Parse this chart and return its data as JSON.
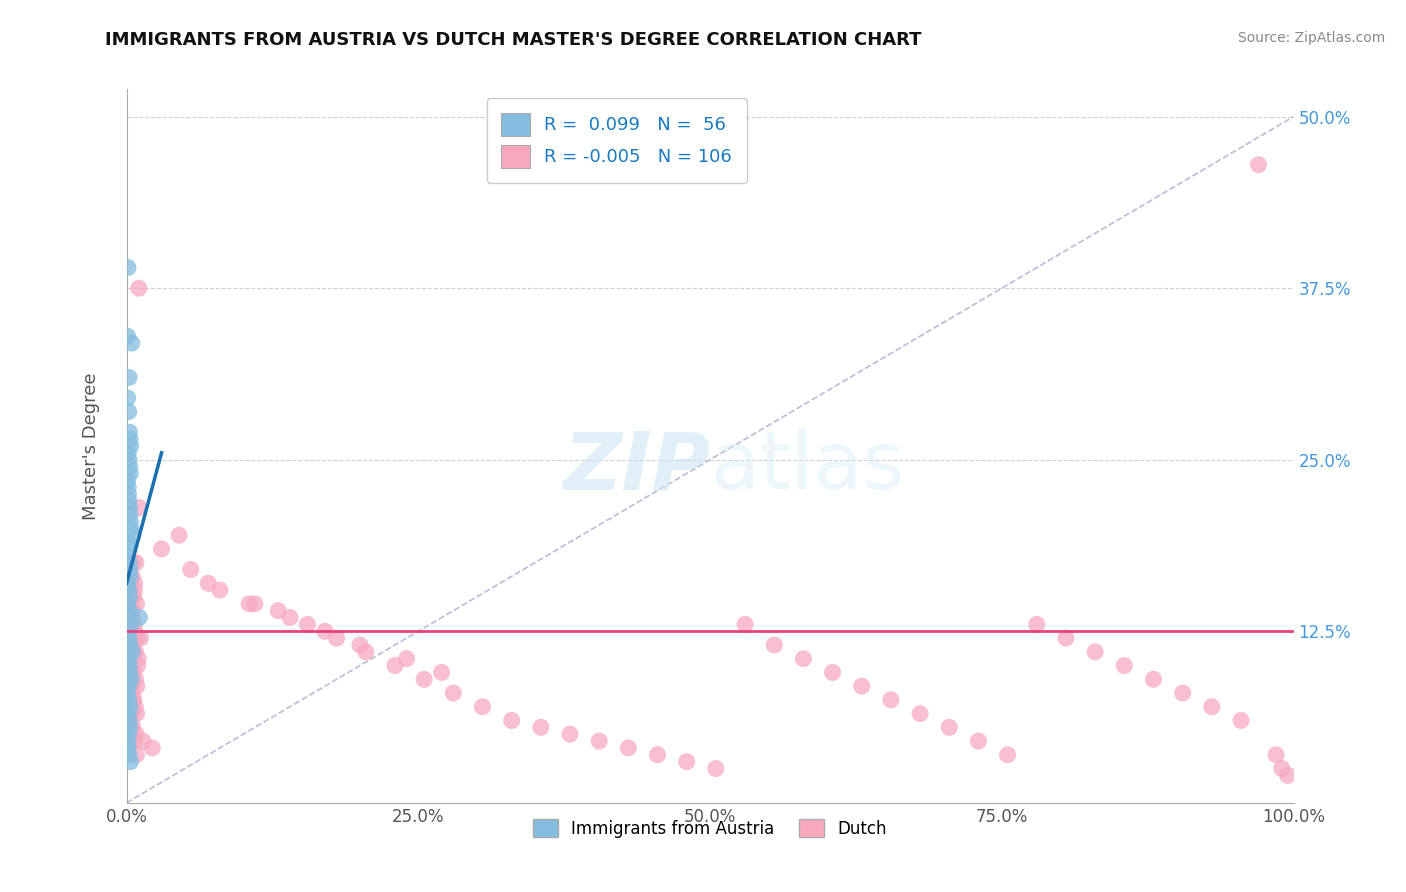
{
  "title": "IMMIGRANTS FROM AUSTRIA VS DUTCH MASTER'S DEGREE CORRELATION CHART",
  "source_text": "Source: ZipAtlas.com",
  "ylabel": "Master's Degree",
  "xlim": [
    0.0,
    100.0
  ],
  "ylim": [
    0.0,
    52.0
  ],
  "xticks": [
    0.0,
    25.0,
    50.0,
    75.0,
    100.0
  ],
  "xtick_labels": [
    "0.0%",
    "25.0%",
    "50.0%",
    "75.0%",
    "100.0%"
  ],
  "yticks": [
    12.5,
    25.0,
    37.5,
    50.0
  ],
  "ytick_labels": [
    "12.5%",
    "25.0%",
    "37.5%",
    "50.0%"
  ],
  "blue_r": 0.099,
  "blue_n": 56,
  "pink_r": -0.005,
  "pink_n": 106,
  "blue_color": "#85bde0",
  "pink_color": "#f7a8bf",
  "blue_line_color": "#1a6faf",
  "pink_line_color": "#e8427a",
  "legend_r_color": "#1a7abf",
  "grid_color": "#cccccc",
  "diag_color": "#aaaacc",
  "blue_scatter_x": [
    0.12,
    0.08,
    0.45,
    0.22,
    0.18,
    0.1,
    0.25,
    0.3,
    0.35,
    0.15,
    0.2,
    0.28,
    0.32,
    0.09,
    0.14,
    0.17,
    0.21,
    0.26,
    0.29,
    0.33,
    0.4,
    0.55,
    0.13,
    0.16,
    0.08,
    0.22,
    0.27,
    0.31,
    0.12,
    0.19,
    0.24,
    0.1,
    0.28,
    0.18,
    0.38,
    0.13,
    0.22,
    0.3,
    0.5,
    1.1,
    0.18,
    0.23,
    0.27,
    0.42,
    0.15,
    0.09,
    0.19,
    0.3,
    0.14,
    0.23,
    0.26,
    0.18,
    0.1,
    0.13,
    0.21,
    0.35
  ],
  "blue_scatter_y": [
    39.0,
    34.0,
    33.5,
    31.0,
    28.5,
    29.5,
    27.0,
    26.5,
    26.0,
    25.5,
    25.0,
    24.5,
    24.0,
    23.5,
    23.0,
    22.5,
    22.0,
    21.5,
    21.0,
    20.5,
    20.0,
    19.5,
    19.0,
    18.5,
    18.0,
    17.5,
    17.0,
    16.5,
    16.0,
    15.5,
    15.0,
    14.5,
    14.0,
    13.5,
    13.0,
    12.5,
    12.0,
    11.5,
    11.0,
    13.5,
    10.5,
    10.0,
    9.5,
    9.0,
    8.5,
    8.0,
    7.5,
    7.0,
    6.5,
    6.0,
    5.5,
    5.0,
    4.5,
    4.0,
    3.5,
    3.0
  ],
  "pink_scatter_x": [
    0.3,
    0.1,
    0.8,
    0.5,
    0.4,
    0.2,
    0.6,
    0.7,
    0.9,
    0.35,
    0.45,
    0.65,
    0.75,
    0.15,
    0.25,
    0.38,
    0.55,
    0.68,
    0.72,
    0.85,
    1.05,
    1.2,
    0.28,
    0.42,
    0.18,
    0.58,
    0.78,
    0.88,
    0.32,
    0.48,
    0.62,
    0.22,
    0.74,
    0.44,
    1.1,
    0.36,
    0.54,
    0.82,
    1.4,
    2.2,
    0.46,
    0.66,
    0.76,
    1.0,
    0.34,
    0.24,
    0.52,
    0.86,
    0.38,
    0.64,
    0.84,
    0.56,
    0.26,
    0.44,
    0.72,
    0.95,
    3.0,
    5.5,
    8.0,
    10.5,
    13.0,
    15.5,
    18.0,
    20.5,
    23.0,
    25.5,
    28.0,
    30.5,
    33.0,
    35.5,
    38.0,
    40.5,
    43.0,
    45.5,
    48.0,
    50.5,
    53.0,
    55.5,
    58.0,
    60.5,
    63.0,
    65.5,
    68.0,
    70.5,
    73.0,
    75.5,
    78.0,
    80.5,
    83.0,
    85.5,
    88.0,
    90.5,
    93.0,
    95.5,
    97.0,
    98.5,
    99.0,
    99.5,
    4.5,
    7.0,
    11.0,
    14.0,
    17.0,
    20.0,
    24.0,
    27.0
  ],
  "pink_scatter_y": [
    16.0,
    14.5,
    17.5,
    16.5,
    13.5,
    12.5,
    15.0,
    16.0,
    12.0,
    14.0,
    13.0,
    12.0,
    11.0,
    17.0,
    14.5,
    13.5,
    17.5,
    15.5,
    12.5,
    14.5,
    37.5,
    12.0,
    14.0,
    10.5,
    10.0,
    9.5,
    9.0,
    8.5,
    11.0,
    8.0,
    7.5,
    13.5,
    7.0,
    6.5,
    21.5,
    6.0,
    5.5,
    5.0,
    4.5,
    4.0,
    15.0,
    13.0,
    12.0,
    10.5,
    9.5,
    8.5,
    7.5,
    6.5,
    5.5,
    4.5,
    3.5,
    14.0,
    12.5,
    11.5,
    11.0,
    10.0,
    18.5,
    17.0,
    15.5,
    14.5,
    14.0,
    13.0,
    12.0,
    11.0,
    10.0,
    9.0,
    8.0,
    7.0,
    6.0,
    5.5,
    5.0,
    4.5,
    4.0,
    3.5,
    3.0,
    2.5,
    13.0,
    11.5,
    10.5,
    9.5,
    8.5,
    7.5,
    6.5,
    5.5,
    4.5,
    3.5,
    13.0,
    12.0,
    11.0,
    10.0,
    9.0,
    8.0,
    7.0,
    6.0,
    46.5,
    3.5,
    2.5,
    2.0,
    19.5,
    16.0,
    14.5,
    13.5,
    12.5,
    11.5,
    10.5,
    9.5
  ],
  "blue_line_x0": 0.0,
  "blue_line_y0": 16.0,
  "blue_line_x1": 3.0,
  "blue_line_y1": 25.5,
  "pink_line_y": 12.5
}
